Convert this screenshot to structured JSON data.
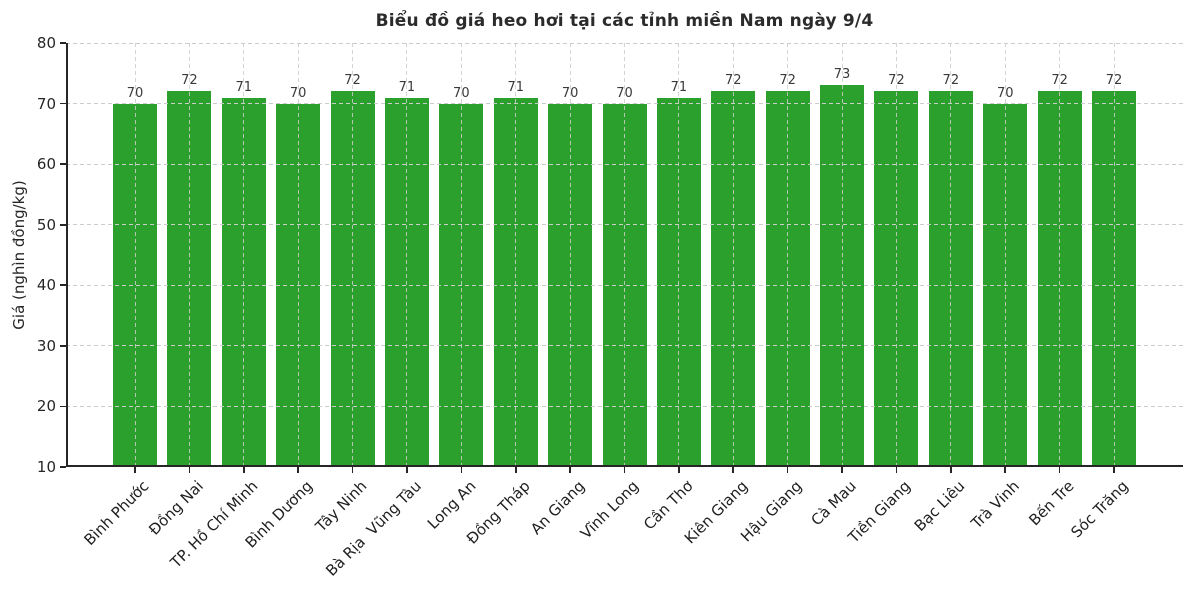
{
  "chart_data": {
    "type": "bar",
    "title": "Biểu đồ giá heo hơi tại các tỉnh miền Nam ngày 9/4",
    "xlabel": "",
    "ylabel": "Giá (nghìn đồng/kg)",
    "categories": [
      "Bình Phước",
      "Đồng Nai",
      "TP. Hồ Chí Minh",
      "Bình Dương",
      "Tây Ninh",
      "Bà Rịa  Vũng Tàu",
      "Long An",
      "Đồng Tháp",
      "An Giang",
      "Vĩnh Long",
      "Cần Thơ",
      "Kiên Giang",
      "Hậu Giang",
      "Cà Mau",
      "Tiền Giang",
      "Bạc Liêu",
      "Trà Vinh",
      "Bến Tre",
      "Sóc Trăng"
    ],
    "values": [
      70,
      72,
      71,
      70,
      72,
      71,
      70,
      71,
      70,
      70,
      71,
      72,
      72,
      73,
      72,
      72,
      70,
      72,
      72
    ],
    "value_labels": [
      "70",
      "72",
      "71",
      "70",
      "72",
      "71",
      "70",
      "71",
      "70",
      "70",
      "71",
      "72",
      "72",
      "73",
      "72",
      "72",
      "70",
      "72",
      "72"
    ],
    "ylim": [
      10,
      80
    ],
    "yticks": [
      10,
      20,
      30,
      40,
      50,
      60,
      70,
      80
    ],
    "bar_color": "#2ca02c",
    "grid": "dashed, horizontal and vertical",
    "legend": "none"
  }
}
